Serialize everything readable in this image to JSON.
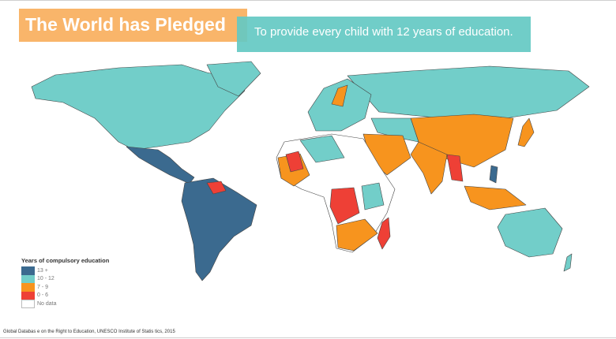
{
  "title": "The World has Pledged",
  "subtitle": "To provide every child with 12 years of education.",
  "legend": {
    "title": "Years of compulsory education",
    "items": [
      {
        "label": "13 +",
        "color": "#3B6A8F"
      },
      {
        "label": "10 - 12",
        "color": "#72CEC9"
      },
      {
        "label": "7 - 9",
        "color": "#F7941E"
      },
      {
        "label": "0 - 6",
        "color": "#EE4036"
      },
      {
        "label": "No data",
        "color": "#FFFFFF"
      }
    ]
  },
  "source": "Global Databas e on the Right to Education, UNESCO Institute of Statis tics, 2015"
}
